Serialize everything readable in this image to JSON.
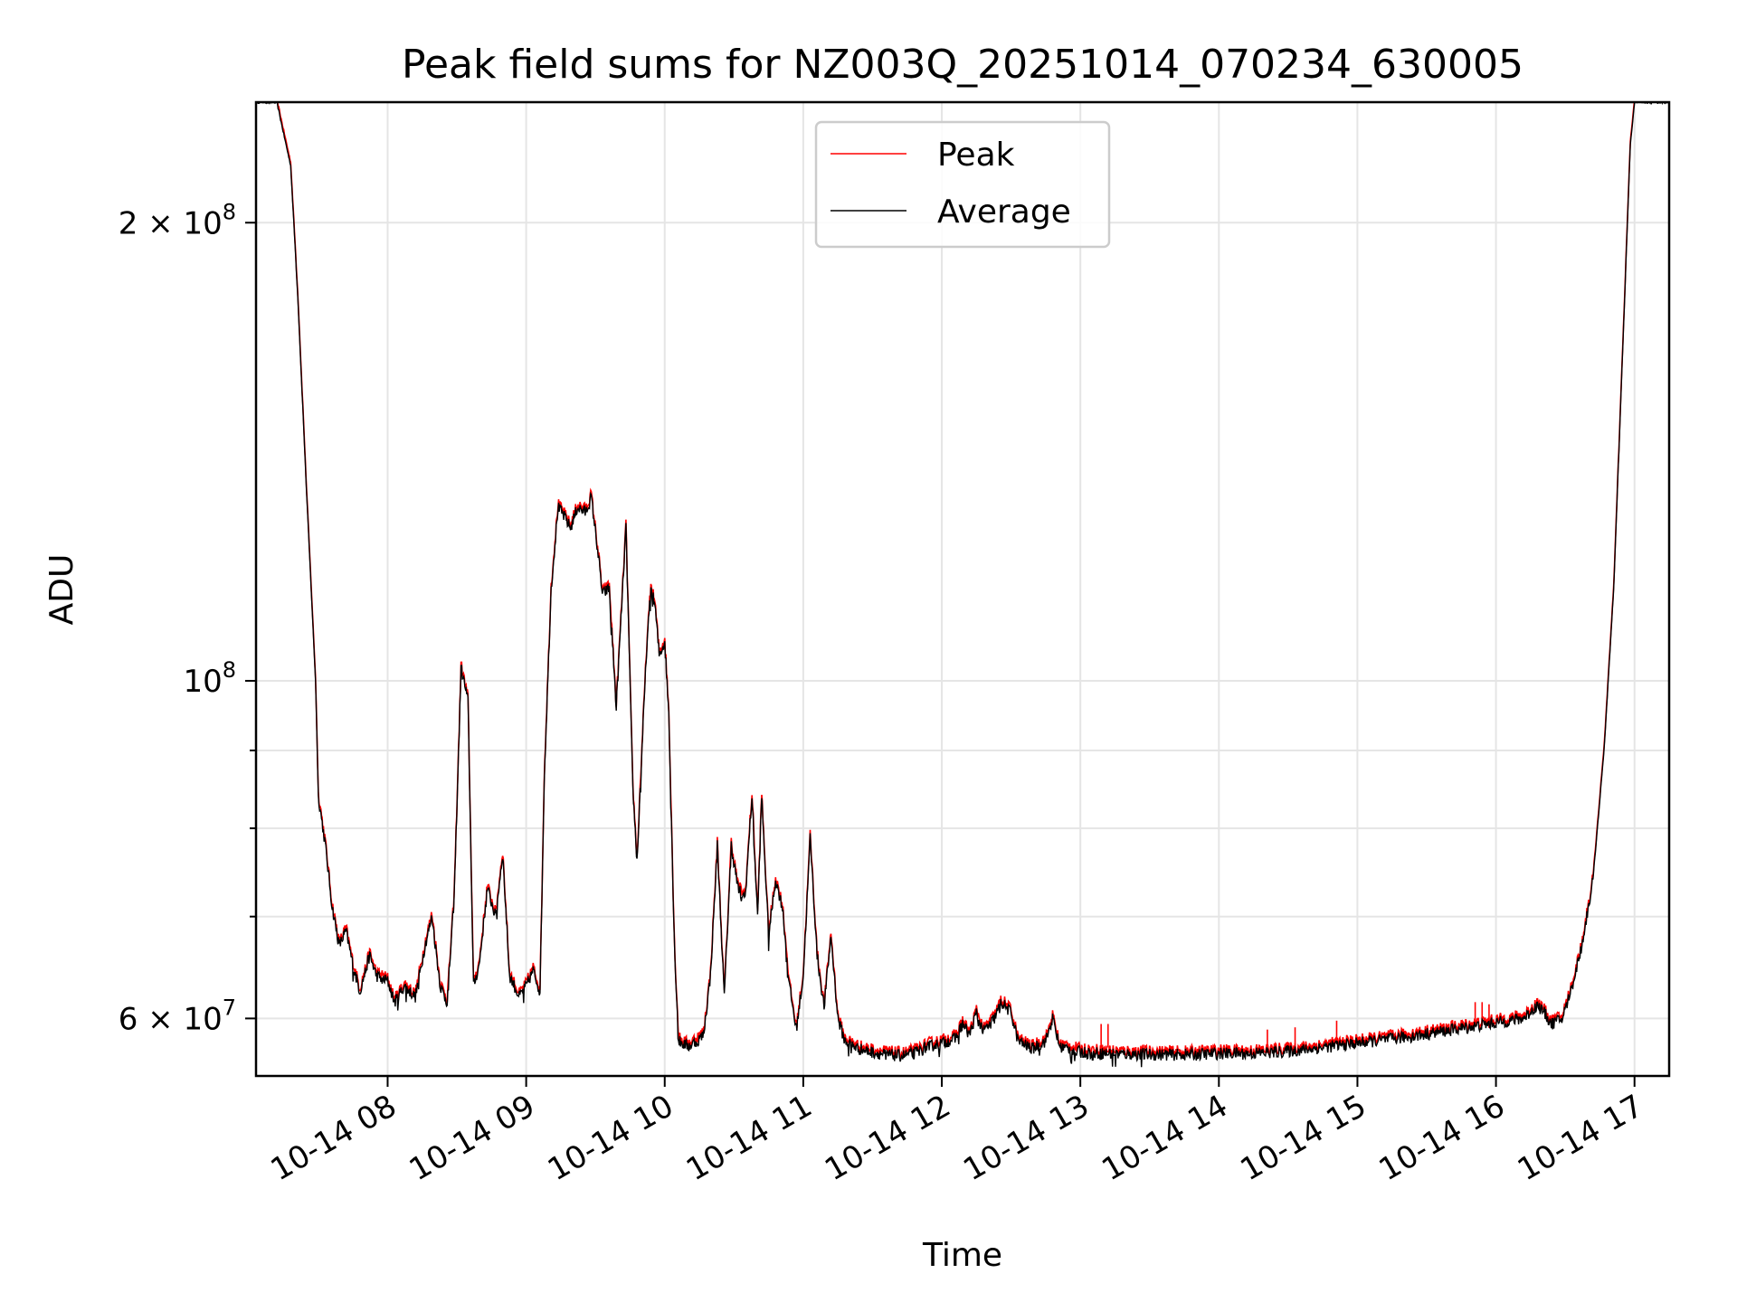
{
  "chart_data": {
    "type": "line",
    "title": "Peak field sums for NZ003Q_20251014_070234_630005",
    "xlabel": "Time",
    "ylabel": "ADU",
    "yscale": "log",
    "ylim": [
      55000000,
      240000000
    ],
    "xlim_hours": [
      7.05,
      17.25
    ],
    "x_ticks": [
      {
        "hour": 8,
        "label": "10-14 08"
      },
      {
        "hour": 9,
        "label": "10-14 09"
      },
      {
        "hour": 10,
        "label": "10-14 10"
      },
      {
        "hour": 11,
        "label": "10-14 11"
      },
      {
        "hour": 12,
        "label": "10-14 12"
      },
      {
        "hour": 13,
        "label": "10-14 13"
      },
      {
        "hour": 14,
        "label": "10-14 14"
      },
      {
        "hour": 15,
        "label": "10-14 15"
      },
      {
        "hour": 16,
        "label": "10-14 16"
      },
      {
        "hour": 17,
        "label": "10-14 17"
      }
    ],
    "y_major_ticks": [
      {
        "value": 60000000,
        "label": "6 × 10",
        "exp": "7"
      },
      {
        "value": 100000000,
        "label": "10",
        "exp": "8"
      },
      {
        "value": 200000000,
        "label": "2 × 10",
        "exp": "8"
      }
    ],
    "y_minor_ticks": [
      70000000,
      80000000,
      90000000
    ],
    "grid": true,
    "legend_position": "top-center",
    "series": [
      {
        "name": "Peak",
        "color": "#ff0000",
        "spikes": [
          {
            "hour": 13.15,
            "value": 59500000
          },
          {
            "hour": 13.2,
            "value": 59500000
          },
          {
            "hour": 14.35,
            "value": 59000000
          },
          {
            "hour": 14.55,
            "value": 59200000
          },
          {
            "hour": 14.85,
            "value": 59800000
          },
          {
            "hour": 15.85,
            "value": 61500000
          },
          {
            "hour": 15.9,
            "value": 61500000
          },
          {
            "hour": 15.95,
            "value": 61300000
          }
        ]
      },
      {
        "name": "Average",
        "color": "#000000",
        "points": [
          [
            7.05,
            240000000
          ],
          [
            7.2,
            240000000
          ],
          [
            7.3,
            218000000
          ],
          [
            7.35,
            180000000
          ],
          [
            7.42,
            130000000
          ],
          [
            7.48,
            100000000
          ],
          [
            7.5,
            84000000
          ],
          [
            7.55,
            78000000
          ],
          [
            7.6,
            71000000
          ],
          [
            7.65,
            67000000
          ],
          [
            7.7,
            68500000
          ],
          [
            7.75,
            65000000
          ],
          [
            7.8,
            62500000
          ],
          [
            7.87,
            66000000
          ],
          [
            7.92,
            64000000
          ],
          [
            8.0,
            63500000
          ],
          [
            8.05,
            61500000
          ],
          [
            8.12,
            63000000
          ],
          [
            8.2,
            62000000
          ],
          [
            8.27,
            67000000
          ],
          [
            8.32,
            70000000
          ],
          [
            8.38,
            63000000
          ],
          [
            8.43,
            61500000
          ],
          [
            8.48,
            72000000
          ],
          [
            8.53,
            102000000
          ],
          [
            8.58,
            97000000
          ],
          [
            8.62,
            63000000
          ],
          [
            8.66,
            65000000
          ],
          [
            8.72,
            73000000
          ],
          [
            8.78,
            70000000
          ],
          [
            8.83,
            77000000
          ],
          [
            8.88,
            64000000
          ],
          [
            8.95,
            62000000
          ],
          [
            9.0,
            63000000
          ],
          [
            9.05,
            64500000
          ],
          [
            9.1,
            62500000
          ],
          [
            9.13,
            86000000
          ],
          [
            9.18,
            115000000
          ],
          [
            9.23,
            130000000
          ],
          [
            9.28,
            128000000
          ],
          [
            9.32,
            126000000
          ],
          [
            9.37,
            130000000
          ],
          [
            9.43,
            129000000
          ],
          [
            9.47,
            132000000
          ],
          [
            9.52,
            121000000
          ],
          [
            9.55,
            114000000
          ],
          [
            9.6,
            115000000
          ],
          [
            9.65,
            96000000
          ],
          [
            9.68,
            108000000
          ],
          [
            9.72,
            126000000
          ],
          [
            9.77,
            85000000
          ],
          [
            9.8,
            76000000
          ],
          [
            9.84,
            92000000
          ],
          [
            9.87,
            105000000
          ],
          [
            9.9,
            115000000
          ],
          [
            9.93,
            112000000
          ],
          [
            9.96,
            104000000
          ],
          [
            10.0,
            106000000
          ],
          [
            10.03,
            95000000
          ],
          [
            10.07,
            67000000
          ],
          [
            10.1,
            58000000
          ],
          [
            10.17,
            57500000
          ],
          [
            10.23,
            58000000
          ],
          [
            10.28,
            58500000
          ],
          [
            10.33,
            64000000
          ],
          [
            10.38,
            78000000
          ],
          [
            10.43,
            62000000
          ],
          [
            10.48,
            78000000
          ],
          [
            10.53,
            73000000
          ],
          [
            10.58,
            72000000
          ],
          [
            10.63,
            84000000
          ],
          [
            10.67,
            70000000
          ],
          [
            10.7,
            84000000
          ],
          [
            10.75,
            68000000
          ],
          [
            10.8,
            74000000
          ],
          [
            10.85,
            71000000
          ],
          [
            10.9,
            63000000
          ],
          [
            10.95,
            59000000
          ],
          [
            11.0,
            64000000
          ],
          [
            11.05,
            79000000
          ],
          [
            11.1,
            66000000
          ],
          [
            11.15,
            61000000
          ],
          [
            11.2,
            68000000
          ],
          [
            11.25,
            60000000
          ],
          [
            11.3,
            58000000
          ],
          [
            11.4,
            57300000
          ],
          [
            11.5,
            57000000
          ],
          [
            11.6,
            56800000
          ],
          [
            11.7,
            56700000
          ],
          [
            11.8,
            56900000
          ],
          [
            11.9,
            57500000
          ],
          [
            12.0,
            57800000
          ],
          [
            12.1,
            58200000
          ],
          [
            12.15,
            59500000
          ],
          [
            12.2,
            58500000
          ],
          [
            12.25,
            60500000
          ],
          [
            12.3,
            58800000
          ],
          [
            12.38,
            60000000
          ],
          [
            12.43,
            61500000
          ],
          [
            12.5,
            60500000
          ],
          [
            12.55,
            58000000
          ],
          [
            12.65,
            57300000
          ],
          [
            12.75,
            58000000
          ],
          [
            12.8,
            60000000
          ],
          [
            12.85,
            57500000
          ],
          [
            12.95,
            57200000
          ],
          [
            13.0,
            57000000
          ],
          [
            13.2,
            56900000
          ],
          [
            13.5,
            56800000
          ],
          [
            13.8,
            56800000
          ],
          [
            14.0,
            56900000
          ],
          [
            14.2,
            56900000
          ],
          [
            14.4,
            57000000
          ],
          [
            14.6,
            57200000
          ],
          [
            14.8,
            57500000
          ],
          [
            15.0,
            57800000
          ],
          [
            15.2,
            58100000
          ],
          [
            15.4,
            58400000
          ],
          [
            15.6,
            58800000
          ],
          [
            15.8,
            59200000
          ],
          [
            16.0,
            59600000
          ],
          [
            16.2,
            60000000
          ],
          [
            16.3,
            61200000
          ],
          [
            16.35,
            60500000
          ],
          [
            16.4,
            59500000
          ],
          [
            16.48,
            60000000
          ],
          [
            16.55,
            63000000
          ],
          [
            16.62,
            67000000
          ],
          [
            16.7,
            74000000
          ],
          [
            16.78,
            90000000
          ],
          [
            16.85,
            115000000
          ],
          [
            16.92,
            170000000
          ],
          [
            16.97,
            225000000
          ],
          [
            17.0,
            240000000
          ],
          [
            17.25,
            240000000
          ]
        ]
      }
    ]
  }
}
